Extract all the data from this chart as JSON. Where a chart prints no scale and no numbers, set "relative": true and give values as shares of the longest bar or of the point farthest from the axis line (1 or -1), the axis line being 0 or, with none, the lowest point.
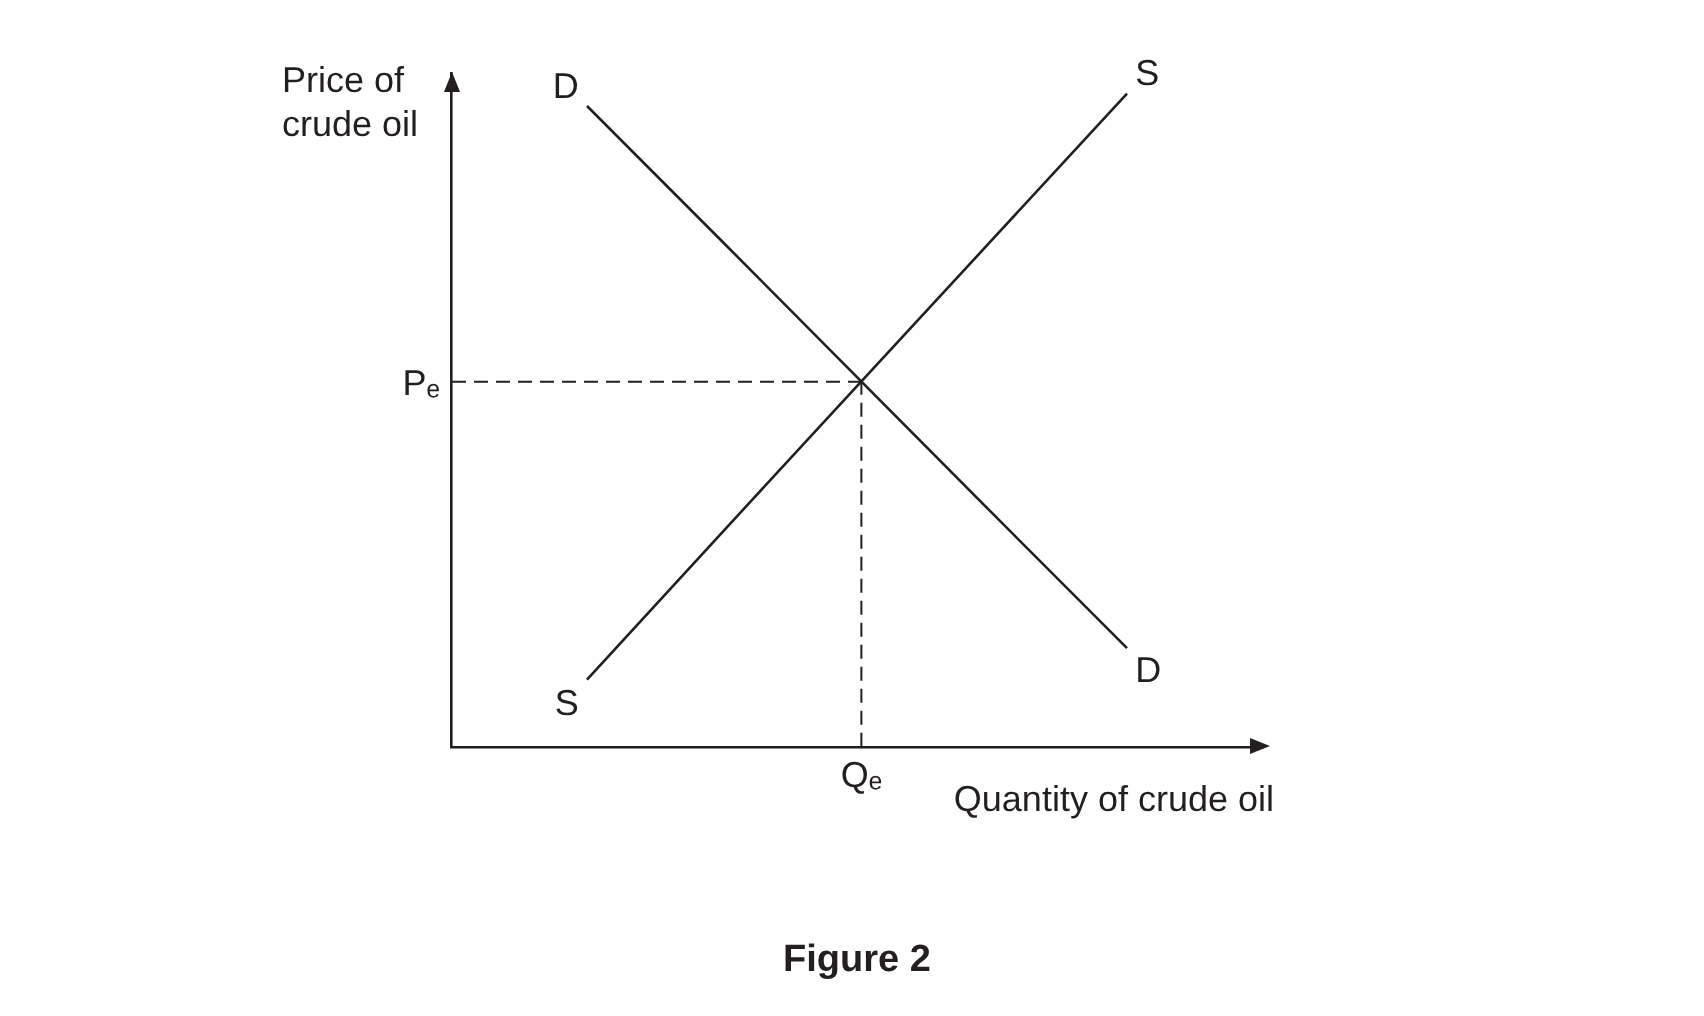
{
  "chart_data": {
    "type": "line",
    "relative": true,
    "xlabel": "Quantity of crude oil",
    "ylabel": "Price of crude oil",
    "annotations": [
      "Figure 2",
      "Qₑ"
    ],
    "categories": [
      null,
      null,
      null,
      null,
      null,
      null,
      null
    ],
    "series": [
      {
        "name": "D",
        "color": "#231f20",
        "values": [
          null,
          0.981,
          0.774,
          0.566,
          0.358,
          0.151,
          null
        ]
      },
      {
        "name": "S",
        "color": "#231f20",
        "values": [
          null,
          0.103,
          0.328,
          0.552,
          0.776,
          1,
          null
        ]
      }
    ],
    "ref_lines": [
      {
        "axis": "y",
        "value": 0.559,
        "label": "Pₑ",
        "line_style": "dashed",
        "color": "#231f20"
      }
    ]
  }
}
